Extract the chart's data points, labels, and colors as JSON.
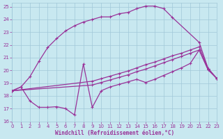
{
  "bg_color": "#c8e8f0",
  "line_color": "#993399",
  "grid_color": "#a0c8d8",
  "xlabel": "Windchill (Refroidissement éolien,°C)",
  "xlim": [
    0,
    23
  ],
  "ylim": [
    16,
    25.3
  ],
  "yticks": [
    16,
    17,
    18,
    19,
    20,
    21,
    22,
    23,
    24,
    25
  ],
  "xticks": [
    0,
    1,
    2,
    3,
    4,
    5,
    6,
    7,
    8,
    9,
    10,
    11,
    12,
    13,
    14,
    15,
    16,
    17,
    18,
    19,
    20,
    21,
    22,
    23
  ],
  "curve_top_x": [
    0,
    1,
    2,
    3,
    4,
    5,
    6,
    7,
    8,
    9,
    10,
    11,
    12,
    13,
    14,
    15,
    16,
    17,
    18,
    21,
    22,
    23
  ],
  "curve_top_y": [
    18.4,
    18.7,
    19.5,
    20.7,
    21.8,
    22.5,
    23.1,
    23.5,
    23.8,
    24.0,
    24.2,
    24.2,
    24.45,
    24.55,
    24.85,
    25.05,
    25.05,
    24.85,
    24.15,
    22.2,
    20.15,
    19.35
  ],
  "curve_mid1_x": [
    0,
    9,
    10,
    11,
    12,
    13,
    14,
    15,
    16,
    17,
    18,
    19,
    20,
    21,
    22,
    23
  ],
  "curve_mid1_y": [
    18.4,
    19.15,
    19.35,
    19.55,
    19.75,
    19.95,
    20.2,
    20.45,
    20.65,
    20.9,
    21.15,
    21.35,
    21.6,
    21.85,
    20.15,
    19.35
  ],
  "curve_mid2_x": [
    0,
    9,
    10,
    11,
    12,
    13,
    14,
    15,
    16,
    17,
    18,
    19,
    20,
    21,
    22,
    23
  ],
  "curve_mid2_y": [
    18.4,
    18.85,
    19.05,
    19.25,
    19.45,
    19.65,
    19.9,
    20.1,
    20.35,
    20.6,
    20.85,
    21.1,
    21.35,
    21.6,
    20.05,
    19.35
  ],
  "curve_low_x": [
    0,
    1,
    2,
    3,
    4,
    5,
    6,
    7,
    8,
    9,
    10,
    11,
    12,
    13,
    14,
    15,
    16,
    17,
    18,
    19,
    20,
    21,
    22,
    23
  ],
  "curve_low_y": [
    18.4,
    18.7,
    17.6,
    17.1,
    17.1,
    17.15,
    17.0,
    16.5,
    20.5,
    17.1,
    18.4,
    18.7,
    18.9,
    19.1,
    19.3,
    19.05,
    19.3,
    19.6,
    19.9,
    20.2,
    20.55,
    21.6,
    20.05,
    19.35
  ]
}
